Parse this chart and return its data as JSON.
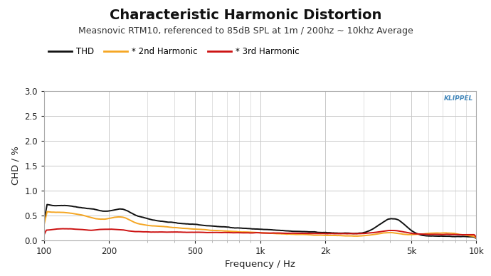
{
  "title": "Characteristic Harmonic Distortion",
  "subtitle": "Measnovic RTM10, referenced to 85dB SPL at 1m / 200hz ~ 10khz Average",
  "xlabel": "Frequency / Hz",
  "ylabel": "CHD / %",
  "ylim": [
    0,
    3.0
  ],
  "xlim": [
    100,
    10000
  ],
  "bg_color": "#ffffff",
  "plot_bg_color": "#ffffff",
  "grid_color": "#c8c8c8",
  "thd_color": "#111111",
  "h2_color": "#f5a623",
  "h3_color": "#cc1111",
  "klippel_color": "#4488bb",
  "title_fontsize": 14,
  "subtitle_fontsize": 9,
  "legend_labels": [
    "THD",
    "* 2nd Harmonic",
    "* 3rd Harmonic"
  ],
  "xtick_vals": [
    100,
    200,
    500,
    1000,
    2000,
    5000,
    10000
  ],
  "xtick_labels": [
    "100",
    "200",
    "500",
    "1k",
    "2k",
    "5k",
    "10k"
  ],
  "ytick_vals": [
    0,
    0.5,
    1.0,
    1.5,
    2.0,
    2.5,
    3.0
  ]
}
